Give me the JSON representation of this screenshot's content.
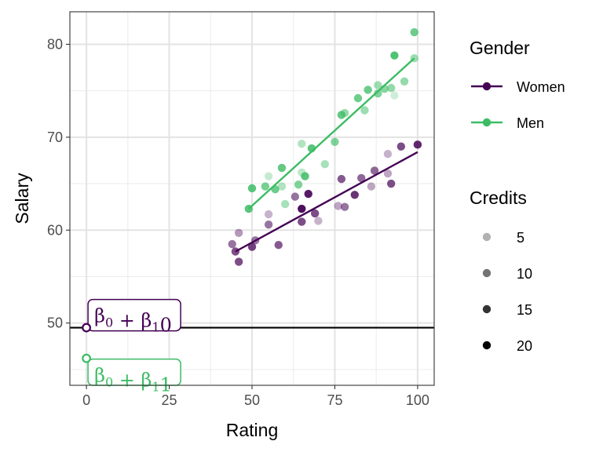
{
  "chart_data": {
    "type": "scatter",
    "xlabel": "Rating",
    "ylabel": "Salary",
    "xlim": [
      -5,
      105
    ],
    "ylim": [
      43.3,
      83.5
    ],
    "x_ticks": [
      0,
      25,
      50,
      75,
      100
    ],
    "y_ticks": [
      50,
      60,
      70,
      80
    ],
    "grid": true,
    "hline": 49.5,
    "colors": {
      "Women": "#440154",
      "Men": "#3cbc64"
    },
    "legend": {
      "position": "right",
      "groups": [
        {
          "title": "Gender",
          "items": [
            "Women",
            "Men"
          ]
        },
        {
          "title": "Credits",
          "items": [
            {
              "label": "5",
              "opacity": 0.3
            },
            {
              "label": "10",
              "opacity": 0.55
            },
            {
              "label": "15",
              "opacity": 0.8
            },
            {
              "label": "20",
              "opacity": 1.0
            }
          ]
        }
      ]
    },
    "annotations": [
      {
        "group": "Women",
        "x": 0,
        "y": 49.5,
        "base": "β",
        "sub0": "0",
        "plus": " + ",
        "sub1": "1",
        "value": "0"
      },
      {
        "group": "Men",
        "x": 0,
        "y": 46.2,
        "base": "β",
        "sub0": "0",
        "plus": " + ",
        "sub1": "1",
        "value": "1"
      }
    ],
    "series": [
      {
        "name": "Women",
        "line": {
          "x": [
            45,
            100
          ],
          "y": [
            57.7,
            68.4
          ]
        },
        "points": [
          {
            "x": 44,
            "y": 58.5,
            "o": 0.55
          },
          {
            "x": 45,
            "y": 57.7,
            "o": 0.7
          },
          {
            "x": 46,
            "y": 56.6,
            "o": 0.7
          },
          {
            "x": 46,
            "y": 59.7,
            "o": 0.4
          },
          {
            "x": 50,
            "y": 58.2,
            "o": 0.75
          },
          {
            "x": 51,
            "y": 58.9,
            "o": 0.55
          },
          {
            "x": 55,
            "y": 60.6,
            "o": 0.55
          },
          {
            "x": 55,
            "y": 61.7,
            "o": 0.3
          },
          {
            "x": 58,
            "y": 58.4,
            "o": 0.65
          },
          {
            "x": 63,
            "y": 63.6,
            "o": 0.55
          },
          {
            "x": 65,
            "y": 62.3,
            "o": 0.95
          },
          {
            "x": 65,
            "y": 60.9,
            "o": 0.7
          },
          {
            "x": 67,
            "y": 63.9,
            "o": 0.9
          },
          {
            "x": 69,
            "y": 61.8,
            "o": 0.7
          },
          {
            "x": 70,
            "y": 61.0,
            "o": 0.3
          },
          {
            "x": 76,
            "y": 62.6,
            "o": 0.35
          },
          {
            "x": 77,
            "y": 65.5,
            "o": 0.65
          },
          {
            "x": 78,
            "y": 62.5,
            "o": 0.55
          },
          {
            "x": 81,
            "y": 63.8,
            "o": 0.8
          },
          {
            "x": 83,
            "y": 65.6,
            "o": 0.6
          },
          {
            "x": 86,
            "y": 64.7,
            "o": 0.35
          },
          {
            "x": 87,
            "y": 66.4,
            "o": 0.6
          },
          {
            "x": 91,
            "y": 68.2,
            "o": 0.3
          },
          {
            "x": 91,
            "y": 66.1,
            "o": 0.35
          },
          {
            "x": 92,
            "y": 65.0,
            "o": 0.7
          },
          {
            "x": 95,
            "y": 69.0,
            "o": 0.7
          },
          {
            "x": 100,
            "y": 69.2,
            "o": 0.85
          }
        ]
      },
      {
        "name": "Men",
        "line": {
          "x": [
            49,
            99
          ],
          "y": [
            62.3,
            78.5
          ]
        },
        "points": [
          {
            "x": 49,
            "y": 62.3,
            "o": 0.85
          },
          {
            "x": 50,
            "y": 64.5,
            "o": 0.85
          },
          {
            "x": 54,
            "y": 64.7,
            "o": 0.7
          },
          {
            "x": 55,
            "y": 65.8,
            "o": 0.3
          },
          {
            "x": 57,
            "y": 64.4,
            "o": 0.75
          },
          {
            "x": 59,
            "y": 66.7,
            "o": 0.8
          },
          {
            "x": 59,
            "y": 64.7,
            "o": 0.4
          },
          {
            "x": 60,
            "y": 62.8,
            "o": 0.45
          },
          {
            "x": 64,
            "y": 64.9,
            "o": 0.65
          },
          {
            "x": 65,
            "y": 69.3,
            "o": 0.4
          },
          {
            "x": 65,
            "y": 66.2,
            "o": 0.35
          },
          {
            "x": 66,
            "y": 65.8,
            "o": 0.85
          },
          {
            "x": 68,
            "y": 68.8,
            "o": 0.85
          },
          {
            "x": 72,
            "y": 67.1,
            "o": 0.45
          },
          {
            "x": 75,
            "y": 69.5,
            "o": 0.65
          },
          {
            "x": 77,
            "y": 72.4,
            "o": 0.8
          },
          {
            "x": 78,
            "y": 72.6,
            "o": 0.55
          },
          {
            "x": 82,
            "y": 74.2,
            "o": 0.75
          },
          {
            "x": 84,
            "y": 72.9,
            "o": 0.5
          },
          {
            "x": 85,
            "y": 75.1,
            "o": 0.75
          },
          {
            "x": 88,
            "y": 74.7,
            "o": 0.65
          },
          {
            "x": 88,
            "y": 75.6,
            "o": 0.5
          },
          {
            "x": 90,
            "y": 75.2,
            "o": 0.6
          },
          {
            "x": 92,
            "y": 75.3,
            "o": 0.55
          },
          {
            "x": 93,
            "y": 74.5,
            "o": 0.25
          },
          {
            "x": 93,
            "y": 78.8,
            "o": 0.9
          },
          {
            "x": 96,
            "y": 76.0,
            "o": 0.55
          },
          {
            "x": 99,
            "y": 78.5,
            "o": 0.5
          },
          {
            "x": 99,
            "y": 81.3,
            "o": 0.75
          }
        ]
      }
    ]
  }
}
